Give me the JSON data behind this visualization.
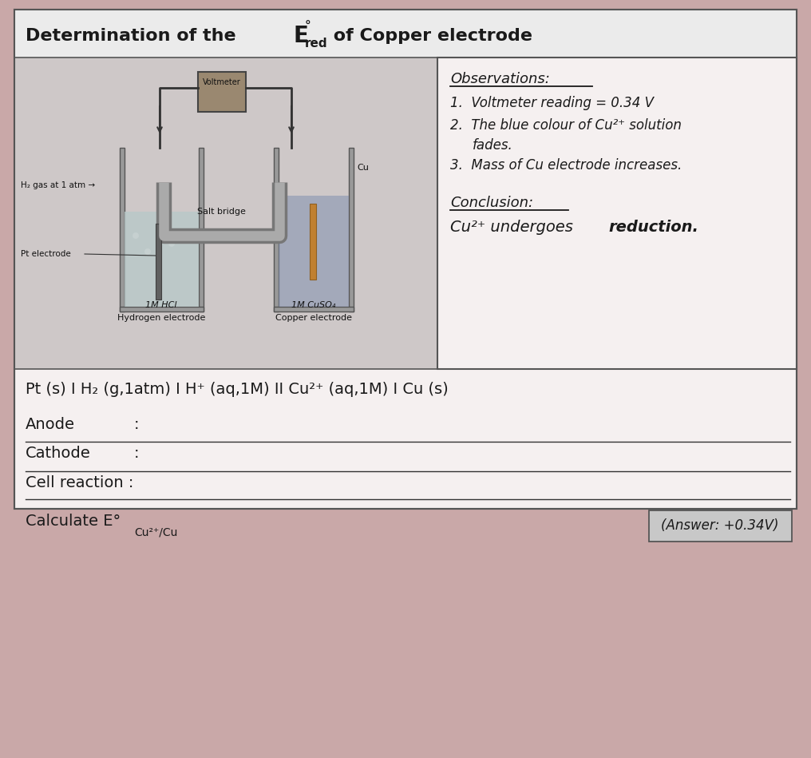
{
  "title_prefix": "Determination of the ",
  "title_suffix": " of Copper electrode",
  "bg_outer": "#c9a8a8",
  "bg_white": "#f5f0f0",
  "bg_diagram": "#d0caca",
  "border_color": "#555555",
  "obs_title": "Observations:",
  "conc_title": "Conclusion:",
  "answer_box": "(Answer: +0.34V)",
  "text_color": "#1a1a1a",
  "line_color": "#333333"
}
